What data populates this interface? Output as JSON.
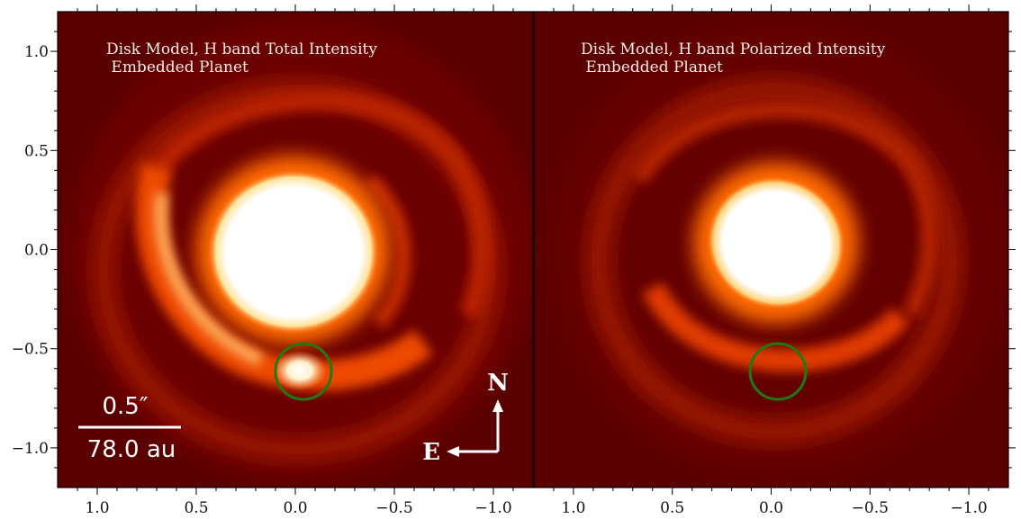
{
  "chart_data": {
    "type": "heatmap",
    "colormap": "gist_heat",
    "colors": {
      "background": "#5a0000",
      "ring": "#e83a00",
      "core": "#ffffff",
      "marker": "#1f7a12",
      "frame": "#000000"
    },
    "shared_y_axis": {
      "ylim": [
        -1.2,
        1.2
      ],
      "ticks": [
        1.0,
        0.5,
        0.0,
        -0.5,
        -1.0
      ],
      "tick_labels": [
        "1.0",
        "0.5",
        "0.0",
        "−0.5",
        "−1.0"
      ]
    },
    "x_axis": {
      "xlim": [
        1.2,
        -1.2
      ],
      "ticks": [
        1.0,
        0.5,
        0.0,
        -0.5,
        -1.0
      ],
      "tick_labels": [
        "1.0",
        "0.5",
        "0.0",
        "−0.5",
        "−1.0"
      ]
    },
    "panels": [
      {
        "title_lines": [
          "Disk Model, H band Total Intensity",
          " Embedded Planet"
        ],
        "planet_circle": {
          "x": -0.04,
          "y": -0.62,
          "r": 0.14
        },
        "planet_signal": "bright"
      },
      {
        "title_lines": [
          "Disk Model, H band Polarized Intensity",
          " Embedded Planet"
        ],
        "planet_circle": {
          "x": -0.04,
          "y": -0.62,
          "r": 0.14
        },
        "planet_signal": "faint"
      }
    ],
    "scale_bar": {
      "angular_label": "0.5″",
      "physical_label": "78.0 au",
      "length": 0.5
    },
    "compass": {
      "north_label": "N",
      "east_label": "E"
    },
    "grid": false,
    "legend": "none"
  }
}
